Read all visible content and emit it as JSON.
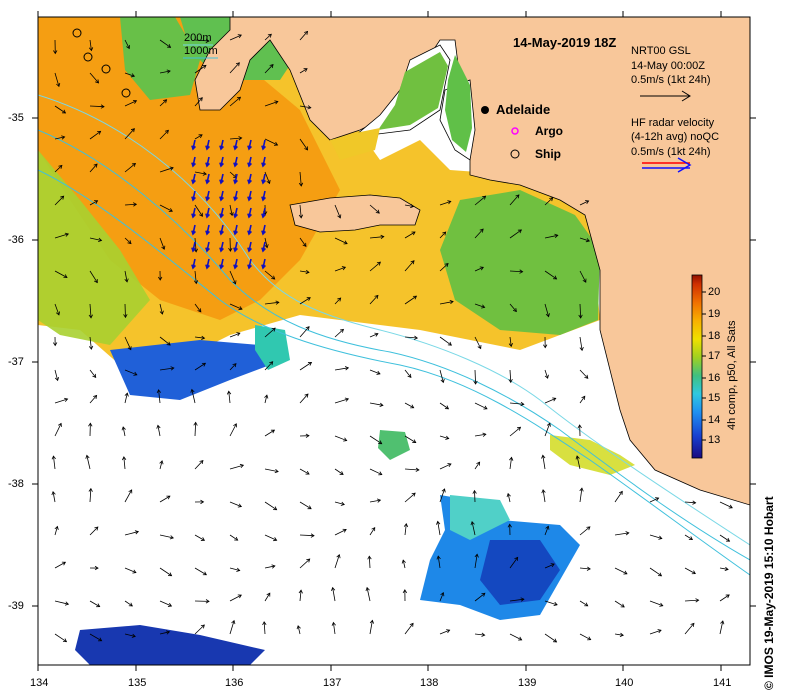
{
  "map": {
    "title": "14-May-2019 18Z",
    "lon_ticks": [
      "134",
      "135",
      "136",
      "137",
      "138",
      "139",
      "140",
      "141"
    ],
    "lat_ticks": [
      "-35",
      "-36",
      "-37",
      "-38",
      "-39"
    ],
    "extent": {
      "lon_min": 134,
      "lon_max": 141.3,
      "lat_min": -39.45,
      "lat_max": -34.2
    }
  },
  "legend": {
    "isobath_200": "200m",
    "isobath_1000": "1000m",
    "adelaide": "Adelaide",
    "argo": "Argo",
    "ship": "Ship",
    "gsl_title": "NRT00 GSL",
    "gsl_time": "14-May 00:00Z",
    "gsl_scale": "0.5m/s (1kt 24h)",
    "hf_title": "HF radar velocity",
    "hf_avg": "(4-12h avg) noQC",
    "hf_scale": "0.5m/s (1kt 24h)"
  },
  "colorbar": {
    "ticks": [
      "20",
      "19",
      "18",
      "17",
      "16",
      "15",
      "14",
      "13"
    ],
    "label": "4h comp, p50, All Sats"
  },
  "footer": {
    "copyright": "© IMOS 19-May-2019 15:10 Hobart"
  },
  "colors": {
    "land": "#f8c79a",
    "isobath_200": "#7ad8e6",
    "isobath_1000": "#3fc0dc",
    "arrow": "#000000",
    "hf_red": "#ff0000",
    "hf_blue": "#1010ff",
    "argo": "#ff00ff"
  }
}
